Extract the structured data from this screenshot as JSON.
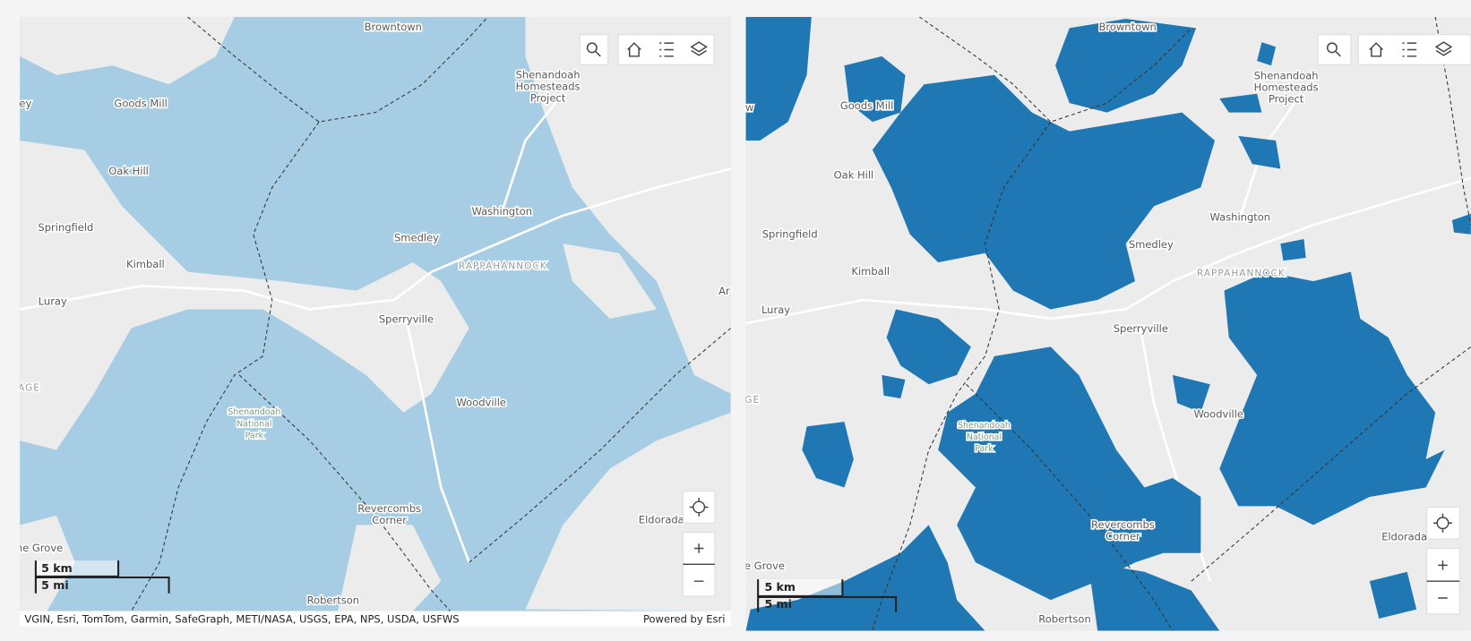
{
  "left_map": {
    "labels": [
      [
        "Browntown"
      ],
      [
        "Goods Mill"
      ],
      [
        "Shenandoah",
        "Homesteads",
        "Project"
      ],
      [
        "Oak Hill"
      ],
      [
        "Springfield"
      ],
      [
        "Kimball"
      ],
      [
        "Luray"
      ],
      [
        "Washington"
      ],
      [
        "Smedley"
      ],
      [
        "RAPPAHANNOCK"
      ],
      [
        "Sperryville"
      ],
      [
        "Woodville"
      ],
      [
        "Shenandoah",
        "National",
        "Park"
      ],
      [
        "Revercombs",
        "Corner"
      ],
      [
        "Eldorada"
      ],
      [
        "Robertson"
      ],
      [
        "ne Grove"
      ],
      [
        "ey"
      ],
      [
        "AGE"
      ],
      [
        "Ar"
      ]
    ],
    "scale_bar": {
      "km": "5 km",
      "mi": "5 mi"
    },
    "attribution": "VGIN, Esri, TomTom, Garmin, SafeGraph, METI/NASA, USGS, EPA, NPS, USDA, USFWS",
    "powered_by": "Powered by Esri"
  },
  "right_map": {
    "labels": [
      [
        "Browntown"
      ],
      [
        "Goods Mill"
      ],
      [
        "Shenandoah",
        "Homesteads",
        "Project"
      ],
      [
        "Oak Hill"
      ],
      [
        "Springfield"
      ],
      [
        "Washington"
      ],
      [
        "Kimball"
      ],
      [
        "Smedley"
      ],
      [
        "RAPPAHANNOCK"
      ],
      [
        "Luray"
      ],
      [
        "Sperryville"
      ],
      [
        "Woodville"
      ],
      [
        "Shenandoah",
        "National",
        "Park"
      ],
      [
        "Revercombs",
        "Corner"
      ],
      [
        "Eldorada"
      ],
      [
        "Robertson"
      ],
      [
        "e Grove"
      ],
      [
        "GE"
      ],
      [
        "w"
      ]
    ],
    "scale_bar": {
      "km": "5 km",
      "mi": "5 mi"
    }
  }
}
